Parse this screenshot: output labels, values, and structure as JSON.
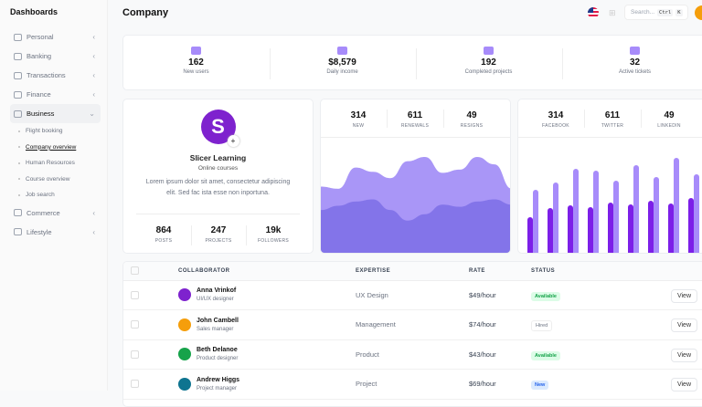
{
  "sidebar": {
    "title": "Dashboards",
    "items": [
      {
        "label": "Personal"
      },
      {
        "label": "Banking"
      },
      {
        "label": "Transactions"
      },
      {
        "label": "Finance"
      },
      {
        "label": "Business",
        "expanded": true,
        "children": [
          "Flight booking",
          "Company overview",
          "Human Resources",
          "Course overview",
          "Job search"
        ],
        "current": "Company overview"
      },
      {
        "label": "Commerce"
      },
      {
        "label": "Lifestyle"
      }
    ]
  },
  "header": {
    "title": "Company",
    "search_placeholder": "Search...",
    "kbd1": "Ctrl",
    "kbd2": "K",
    "icons": [
      "us-flag-icon",
      "grid-icon",
      "user-avatar"
    ]
  },
  "stats": [
    {
      "value": "162",
      "label": "New users",
      "icon": "users-icon"
    },
    {
      "value": "$8,579",
      "label": "Daily income",
      "icon": "store-icon"
    },
    {
      "value": "192",
      "label": "Completed projects",
      "icon": "briefcase-icon"
    },
    {
      "value": "32",
      "label": "Active tickets",
      "icon": "ticket-icon"
    }
  ],
  "profile": {
    "name": "Slicer Learning",
    "subtitle": "Online courses",
    "description": "Lorem ipsum dolor sit amet, consectetur adipiscing elit. Sed fac ista esse non inportuna.",
    "stats": [
      {
        "value": "864",
        "label": "POSTS"
      },
      {
        "value": "247",
        "label": "PROJECTS"
      },
      {
        "value": "19k",
        "label": "FOLLOWERS"
      }
    ]
  },
  "area_card": {
    "stats": [
      {
        "value": "314",
        "label": "NEW"
      },
      {
        "value": "611",
        "label": "RENEWALS"
      },
      {
        "value": "49",
        "label": "RESIGNS"
      }
    ]
  },
  "bar_card": {
    "stats": [
      {
        "value": "314",
        "label": "FACEBOOK"
      },
      {
        "value": "611",
        "label": "TWITTER"
      },
      {
        "value": "49",
        "label": "LINKEDIN"
      }
    ]
  },
  "chart_data": [
    {
      "type": "area",
      "series": [
        {
          "values": [
            64,
            62,
            82,
            78,
            72,
            88,
            92,
            77,
            80,
            92,
            85,
            62
          ]
        },
        {
          "values": [
            42,
            46,
            50,
            52,
            42,
            32,
            38,
            47,
            45,
            50,
            52,
            47
          ]
        }
      ],
      "colors": [
        "#a996f7",
        "#7c6ee6"
      ]
    },
    {
      "type": "bar",
      "series": [
        {
          "values": [
            40,
            50,
            53,
            51,
            56,
            54,
            58,
            55,
            61
          ]
        },
        {
          "values": [
            70,
            78,
            93,
            91,
            80,
            97,
            84,
            105,
            87
          ]
        }
      ],
      "colors": [
        "#7c1fe8",
        "#a78bfa"
      ]
    }
  ],
  "table": {
    "headers": [
      "COLLABORATOR",
      "EXPERTISE",
      "RATE",
      "STATUS"
    ],
    "rows": [
      {
        "name": "Anna Vrinkof",
        "role": "UI/UX designer",
        "expertise": "UX Design",
        "rate": "$49/hour",
        "status": "Available",
        "action": "View",
        "avatar": "#7e22ce"
      },
      {
        "name": "John Cambell",
        "role": "Sales manager",
        "expertise": "Management",
        "rate": "$74/hour",
        "status": "Hired",
        "action": "View",
        "avatar": "#f59e0b"
      },
      {
        "name": "Beth Delanoe",
        "role": "Product designer",
        "expertise": "Product",
        "rate": "$43/hour",
        "status": "Available",
        "action": "View",
        "avatar": "#16a34a"
      },
      {
        "name": "Andrew Higgs",
        "role": "Project manager",
        "expertise": "Project",
        "rate": "$69/hour",
        "status": "New",
        "action": "View",
        "avatar": "#0e7490"
      }
    ]
  },
  "colors": {
    "accent": "#7c3aed"
  }
}
